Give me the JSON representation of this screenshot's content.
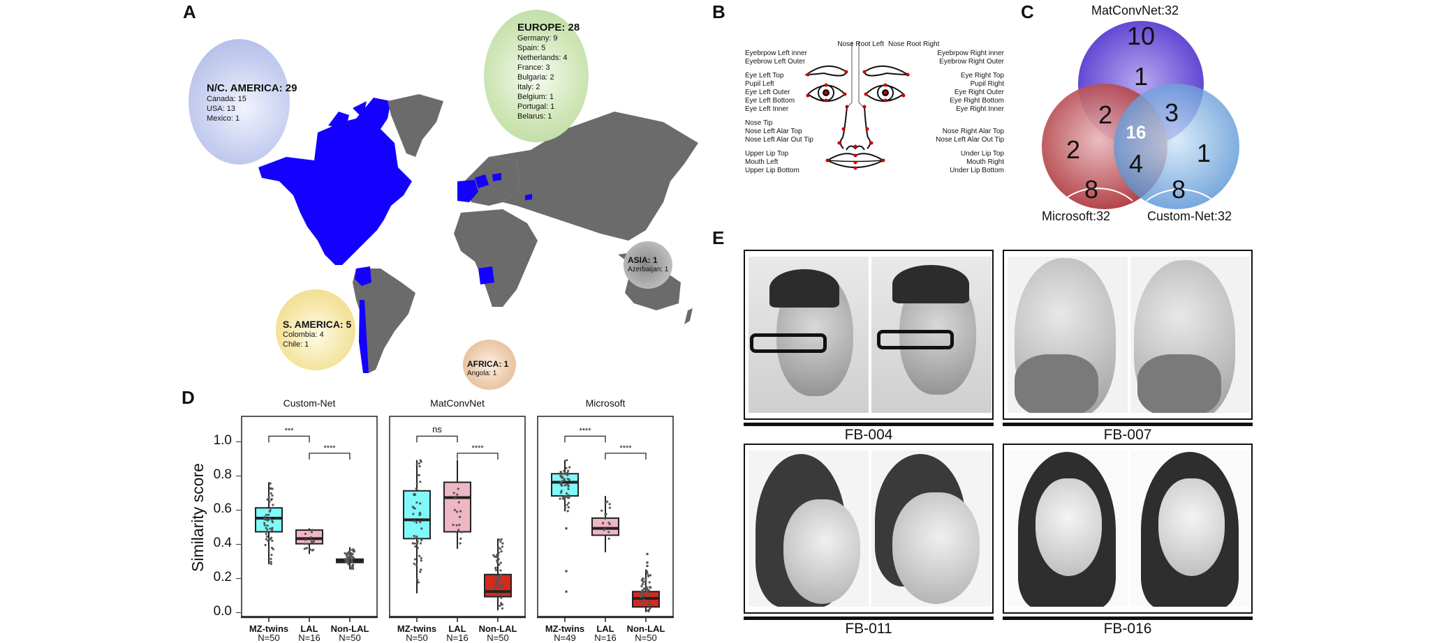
{
  "panels": {
    "A": {
      "letter": "A",
      "regions": [
        {
          "key": "nc_america",
          "title": "N/C. AMERICA: 29",
          "color": "#a9b5e2",
          "items": [
            "Canada: 15",
            "USA: 13",
            "Mexico: 1"
          ]
        },
        {
          "key": "europe",
          "title": "EUROPE: 28",
          "color": "#b8d99a",
          "items": [
            "Germany: 9",
            "Spain: 5",
            "Netherlands: 4",
            "France: 3",
            "Bulgaria: 2",
            "Italy: 2",
            "Belgium: 1",
            "Portugal: 1",
            "Belarus: 1"
          ]
        },
        {
          "key": "asia",
          "title": "ASIA: 1",
          "color": "#9a9a9a",
          "items": [
            "Azerbaijan: 1"
          ]
        },
        {
          "key": "s_america",
          "title": "S. AMERICA: 5",
          "color": "#f1dc84",
          "items": [
            "Colombia: 4",
            "Chile: 1"
          ]
        },
        {
          "key": "africa",
          "title": "AFRICA: 1",
          "color": "#e3b892",
          "items": [
            "Angola:  1"
          ]
        }
      ],
      "map_colors": {
        "highlight": "#1400ff",
        "land": "#6b6b6b"
      }
    },
    "B": {
      "letter": "B",
      "left_labels": [
        "Eyebrpow Left inner",
        "Eyebrow Left Outer",
        "Eye Left Top",
        "Pupil Left",
        "Eye Left Outer",
        "Eye Left Bottom",
        "Eye Left Inner",
        "Nose Tip",
        "Nose Left Alar Top",
        "Nose Left Alar Out Tip",
        "Upper Lip Top",
        "Mouth Left",
        "Upper Lip Bottom"
      ],
      "right_labels": [
        "Eyebrpow Right inner",
        "Eyebrow Right Outer",
        "Eye Right Top",
        "Pupil Right",
        "Eye Right Outer",
        "Eye Right Bottom",
        "Eye Right Inner",
        "Nose Right Alar Top",
        "Nose Left Alar Out Tip",
        "Under Lip Top",
        "Mouth Right",
        "Under Lip Bottom"
      ],
      "top_labels": [
        "Nose Root Left",
        "Nose Root Right"
      ],
      "landmark_color": "#cc0000"
    },
    "C": {
      "letter": "C",
      "sets": [
        {
          "label": "MatConvNet:32",
          "color": "#6a4fd8"
        },
        {
          "label": "Microsoft:32",
          "color": "#b8353b"
        },
        {
          "label": "Custom-Net:32",
          "color": "#5b9bd9"
        }
      ],
      "regions": {
        "matconvnet_only_top": "10",
        "matconvnet_only": "1",
        "matconvnet_microsoft": "2",
        "matconvnet_customnet": "3",
        "all_three": "16",
        "microsoft_only": "2",
        "microsoft_customnet": "4",
        "customnet_only": "1",
        "microsoft_only_bottom": "8",
        "customnet_only_bottom": "8"
      }
    },
    "D": {
      "letter": "D"
    },
    "E": {
      "letter": "E",
      "pairs": [
        {
          "id": "FB-004"
        },
        {
          "id": "FB-007"
        },
        {
          "id": "FB-011"
        },
        {
          "id": "FB-016"
        }
      ]
    }
  },
  "chart_data": {
    "type": "boxplot",
    "ylabel": "Similarity score",
    "ylim": [
      -0.03,
      1.15
    ],
    "yticks": [
      "0.0",
      "0.2",
      "0.4",
      "0.6",
      "0.8",
      "1.0"
    ],
    "ytick_values": [
      0.0,
      0.2,
      0.4,
      0.6,
      0.8,
      1.0
    ],
    "categories": [
      "MZ-twins",
      "LAL",
      "Non-LAL"
    ],
    "category_colors": {
      "MZ-twins": "#7ff9f9",
      "LAL": "#efb6c4",
      "Non-LAL": "#d42a1f"
    },
    "facets": [
      {
        "title": "Custom-Net",
        "groups": [
          {
            "name": "MZ-twins",
            "n": "N=50",
            "min": 0.28,
            "q1": 0.47,
            "median": 0.55,
            "q3": 0.61,
            "max": 0.76,
            "color": "#7ff9f9"
          },
          {
            "name": "LAL",
            "n": "N=16",
            "min": 0.34,
            "q1": 0.4,
            "median": 0.43,
            "q3": 0.48,
            "max": 0.49,
            "color": "#efb6c4"
          },
          {
            "name": "Non-LAL",
            "n": "N=50",
            "min": 0.25,
            "q1": 0.29,
            "median": 0.3,
            "q3": 0.31,
            "max": 0.38,
            "color": "#222222"
          }
        ],
        "comparisons": [
          {
            "from": "MZ-twins",
            "to": "LAL",
            "label": "***",
            "level": 1.03
          },
          {
            "from": "LAL",
            "to": "Non-LAL",
            "label": "****",
            "level": 0.93
          }
        ]
      },
      {
        "title": "MatConvNet",
        "groups": [
          {
            "name": "MZ-twins",
            "n": "N=50",
            "min": 0.11,
            "q1": 0.43,
            "median": 0.54,
            "q3": 0.71,
            "max": 0.89,
            "color": "#7ff9f9"
          },
          {
            "name": "LAL",
            "n": "N=16",
            "min": 0.37,
            "q1": 0.47,
            "median": 0.67,
            "q3": 0.76,
            "max": 0.89,
            "color": "#efb6c4"
          },
          {
            "name": "Non-LAL",
            "n": "N=50",
            "min": 0.01,
            "q1": 0.09,
            "median": 0.12,
            "q3": 0.22,
            "max": 0.43,
            "color": "#d42a1f"
          }
        ],
        "comparisons": [
          {
            "from": "MZ-twins",
            "to": "LAL",
            "label": "ns",
            "level": 1.03
          },
          {
            "from": "LAL",
            "to": "Non-LAL",
            "label": "****",
            "level": 0.93
          }
        ]
      },
      {
        "title": "Microsoft",
        "groups": [
          {
            "name": "MZ-twins",
            "n": "N=49",
            "min": 0.59,
            "q1": 0.68,
            "median": 0.76,
            "q3": 0.81,
            "max": 0.89,
            "color": "#7ff9f9",
            "outliers": [
              0.49,
              0.24,
              0.12
            ]
          },
          {
            "name": "LAL",
            "n": "N=16",
            "min": 0.35,
            "q1": 0.45,
            "median": 0.49,
            "q3": 0.55,
            "max": 0.68,
            "color": "#efb6c4"
          },
          {
            "name": "Non-LAL",
            "n": "N=50",
            "min": 0.0,
            "q1": 0.03,
            "median": 0.08,
            "q3": 0.12,
            "max": 0.25,
            "color": "#d42a1f",
            "outliers": [
              0.34,
              0.29,
              0.27
            ]
          }
        ],
        "comparisons": [
          {
            "from": "MZ-twins",
            "to": "LAL",
            "label": "****",
            "level": 1.03
          },
          {
            "from": "LAL",
            "to": "Non-LAL",
            "label": "****",
            "level": 0.93
          }
        ]
      }
    ]
  }
}
